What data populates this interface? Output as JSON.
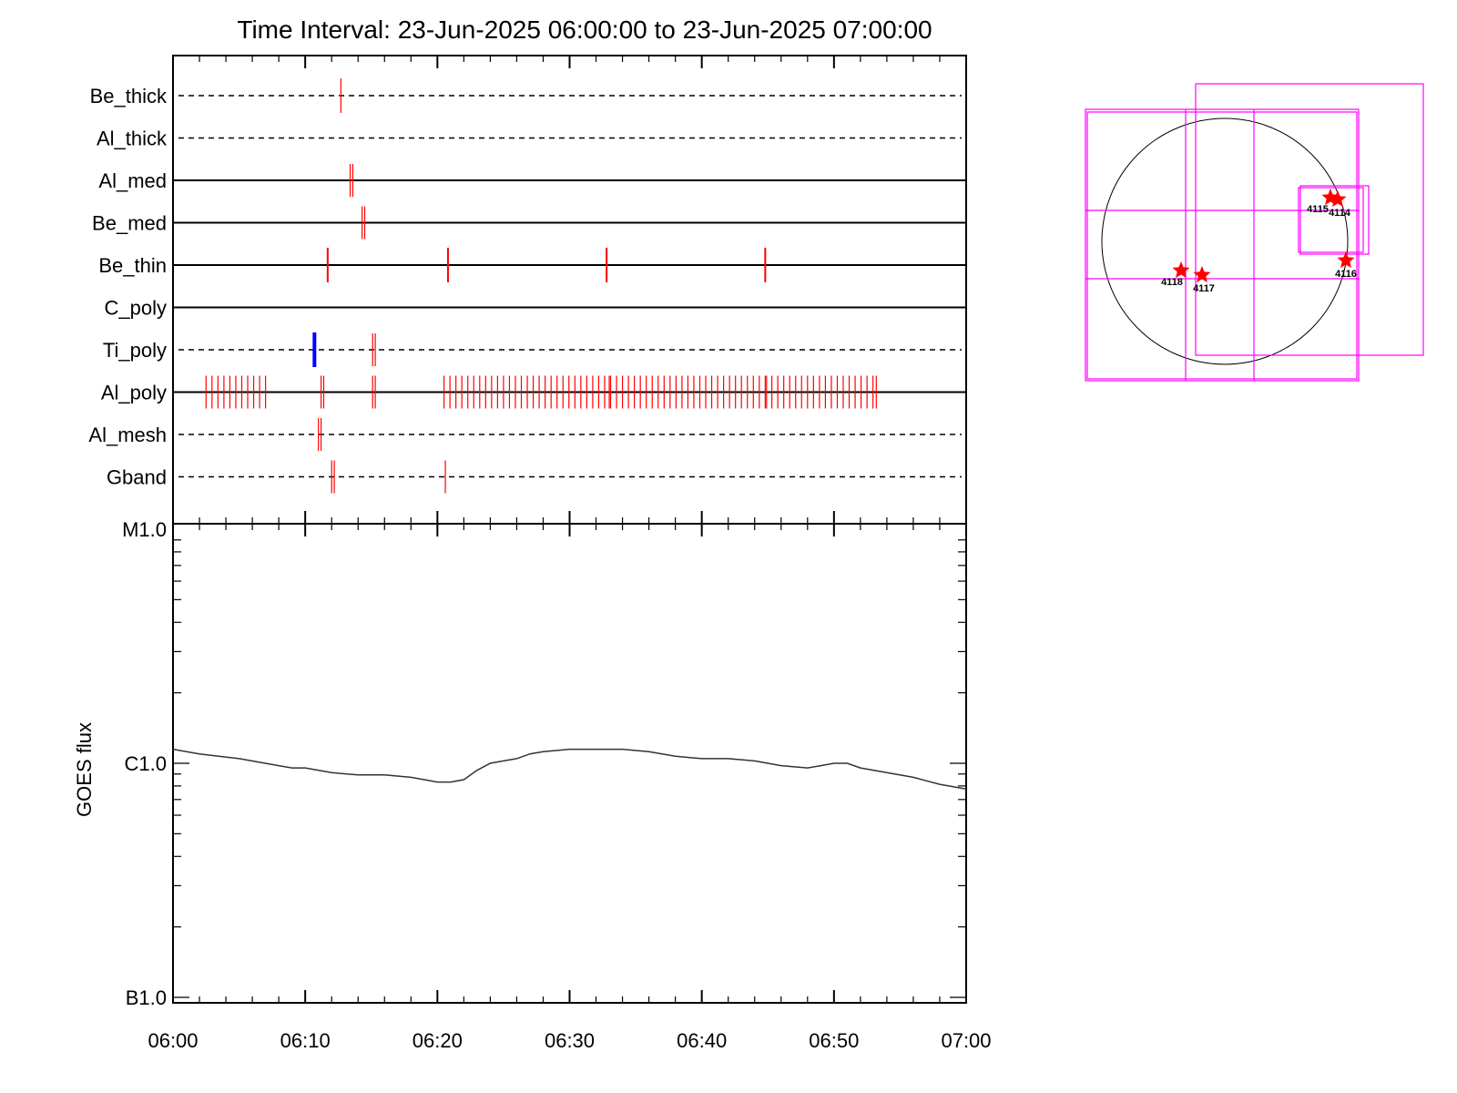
{
  "title": "Time Interval: 23-Jun-2025 06:00:00 to 23-Jun-2025 07:00:00",
  "colors": {
    "frame": "#000000",
    "exposure_tick": "#ff0000",
    "highlight_tick": "#0000ff",
    "fov_box": "#ff00ff",
    "flare_star": "#ff0000",
    "goes_line": "#333333"
  },
  "chart_data": [
    {
      "type": "event-timeline",
      "x_tick_labels": [
        "06:00",
        "06:10",
        "06:20",
        "06:30",
        "06:40",
        "06:50",
        "07:00"
      ],
      "x_range_minutes": [
        0,
        60
      ],
      "rows": [
        {
          "label": "Be_thick",
          "line": "dashed",
          "events": [
            {
              "t": 12.7,
              "color": "red"
            }
          ]
        },
        {
          "label": "Al_thick",
          "line": "dashed",
          "events": []
        },
        {
          "label": "Al_med",
          "line": "solid",
          "events": [
            {
              "t": 13.4,
              "color": "red"
            },
            {
              "t": 13.6,
              "color": "red"
            }
          ]
        },
        {
          "label": "Be_med",
          "line": "solid",
          "events": [
            {
              "t": 14.3,
              "color": "red"
            },
            {
              "t": 14.5,
              "color": "red"
            }
          ]
        },
        {
          "label": "Be_thin",
          "line": "solid",
          "events": [
            {
              "t": 11.7,
              "color": "red"
            },
            {
              "t": 20.8,
              "color": "red"
            },
            {
              "t": 32.8,
              "color": "red"
            },
            {
              "t": 44.8,
              "color": "red"
            }
          ]
        },
        {
          "label": "C_poly",
          "line": "solid",
          "events": []
        },
        {
          "label": "Ti_poly",
          "line": "dashed",
          "events": [
            {
              "t": 10.7,
              "color": "blue"
            },
            {
              "t": 15.1,
              "color": "red"
            },
            {
              "t": 15.3,
              "color": "red"
            }
          ]
        },
        {
          "label": "Al_poly",
          "line": "solid",
          "events": [
            {
              "t": 2.5,
              "color": "red"
            },
            {
              "t": 2.95,
              "color": "red"
            },
            {
              "t": 3.4,
              "color": "red"
            },
            {
              "t": 3.85,
              "color": "red"
            },
            {
              "t": 4.3,
              "color": "red"
            },
            {
              "t": 4.75,
              "color": "red"
            },
            {
              "t": 5.2,
              "color": "red"
            },
            {
              "t": 5.65,
              "color": "red"
            },
            {
              "t": 6.1,
              "color": "red"
            },
            {
              "t": 6.55,
              "color": "red"
            },
            {
              "t": 7.0,
              "color": "red"
            },
            {
              "t": 11.2,
              "color": "red"
            },
            {
              "t": 11.4,
              "color": "red"
            },
            {
              "t": 15.1,
              "color": "red"
            },
            {
              "t": 15.3,
              "color": "red"
            },
            {
              "t": 20.5,
              "color": "red"
            },
            {
              "t": 20.95,
              "color": "red"
            },
            {
              "t": 21.4,
              "color": "red"
            },
            {
              "t": 21.85,
              "color": "red"
            },
            {
              "t": 22.3,
              "color": "red"
            },
            {
              "t": 22.75,
              "color": "red"
            },
            {
              "t": 23.2,
              "color": "red"
            },
            {
              "t": 23.65,
              "color": "red"
            },
            {
              "t": 24.1,
              "color": "red"
            },
            {
              "t": 24.55,
              "color": "red"
            },
            {
              "t": 25.0,
              "color": "red"
            },
            {
              "t": 25.45,
              "color": "red"
            },
            {
              "t": 25.9,
              "color": "red"
            },
            {
              "t": 26.35,
              "color": "red"
            },
            {
              "t": 26.8,
              "color": "red"
            },
            {
              "t": 27.25,
              "color": "red"
            },
            {
              "t": 27.7,
              "color": "red"
            },
            {
              "t": 28.15,
              "color": "red"
            },
            {
              "t": 28.6,
              "color": "red"
            },
            {
              "t": 29.05,
              "color": "red"
            },
            {
              "t": 29.5,
              "color": "red"
            },
            {
              "t": 29.95,
              "color": "red"
            },
            {
              "t": 30.4,
              "color": "red"
            },
            {
              "t": 30.85,
              "color": "red"
            },
            {
              "t": 31.3,
              "color": "red"
            },
            {
              "t": 31.75,
              "color": "red"
            },
            {
              "t": 32.2,
              "color": "red"
            },
            {
              "t": 32.65,
              "color": "red"
            },
            {
              "t": 33.0,
              "color": "red"
            },
            {
              "t": 33.1,
              "color": "red"
            },
            {
              "t": 33.55,
              "color": "red"
            },
            {
              "t": 34.0,
              "color": "red"
            },
            {
              "t": 34.45,
              "color": "red"
            },
            {
              "t": 34.9,
              "color": "red"
            },
            {
              "t": 35.35,
              "color": "red"
            },
            {
              "t": 35.8,
              "color": "red"
            },
            {
              "t": 36.25,
              "color": "red"
            },
            {
              "t": 36.7,
              "color": "red"
            },
            {
              "t": 37.15,
              "color": "red"
            },
            {
              "t": 37.6,
              "color": "red"
            },
            {
              "t": 38.05,
              "color": "red"
            },
            {
              "t": 38.5,
              "color": "red"
            },
            {
              "t": 38.95,
              "color": "red"
            },
            {
              "t": 39.4,
              "color": "red"
            },
            {
              "t": 39.85,
              "color": "red"
            },
            {
              "t": 40.3,
              "color": "red"
            },
            {
              "t": 40.75,
              "color": "red"
            },
            {
              "t": 41.2,
              "color": "red"
            },
            {
              "t": 41.65,
              "color": "red"
            },
            {
              "t": 42.1,
              "color": "red"
            },
            {
              "t": 42.55,
              "color": "red"
            },
            {
              "t": 43.0,
              "color": "red"
            },
            {
              "t": 43.45,
              "color": "red"
            },
            {
              "t": 43.9,
              "color": "red"
            },
            {
              "t": 44.35,
              "color": "red"
            },
            {
              "t": 44.8,
              "color": "red"
            },
            {
              "t": 44.9,
              "color": "red"
            },
            {
              "t": 45.3,
              "color": "red"
            },
            {
              "t": 45.75,
              "color": "red"
            },
            {
              "t": 46.2,
              "color": "red"
            },
            {
              "t": 46.65,
              "color": "red"
            },
            {
              "t": 47.1,
              "color": "red"
            },
            {
              "t": 47.55,
              "color": "red"
            },
            {
              "t": 48.0,
              "color": "red"
            },
            {
              "t": 48.45,
              "color": "red"
            },
            {
              "t": 48.9,
              "color": "red"
            },
            {
              "t": 49.35,
              "color": "red"
            },
            {
              "t": 49.8,
              "color": "red"
            },
            {
              "t": 50.25,
              "color": "red"
            },
            {
              "t": 50.7,
              "color": "red"
            },
            {
              "t": 51.15,
              "color": "red"
            },
            {
              "t": 51.6,
              "color": "red"
            },
            {
              "t": 52.05,
              "color": "red"
            },
            {
              "t": 52.5,
              "color": "red"
            },
            {
              "t": 52.95,
              "color": "red"
            },
            {
              "t": 53.2,
              "color": "red"
            }
          ]
        },
        {
          "label": "Al_mesh",
          "line": "dashed",
          "events": [
            {
              "t": 11.0,
              "color": "red"
            },
            {
              "t": 11.2,
              "color": "red"
            }
          ]
        },
        {
          "label": "Gband",
          "line": "dashed",
          "events": [
            {
              "t": 12.0,
              "color": "red"
            },
            {
              "t": 12.2,
              "color": "red"
            },
            {
              "t": 20.6,
              "color": "red"
            }
          ]
        }
      ]
    },
    {
      "type": "line",
      "ylabel": "GOES flux",
      "y_tick_labels": [
        "M1.0",
        "C1.0",
        "B1.0"
      ],
      "ylog": true,
      "ylim_log10": [
        -7,
        -5
      ],
      "x_range_minutes": [
        0,
        60
      ],
      "series": [
        {
          "x_minutes": [
            0,
            2,
            5,
            8,
            9,
            10,
            12,
            14,
            16,
            18,
            20,
            21,
            22,
            23,
            24,
            25,
            26,
            27,
            28,
            30,
            32,
            34,
            36,
            38,
            40,
            42,
            44,
            46,
            48,
            49,
            50,
            51,
            52,
            54,
            56,
            58,
            60
          ],
          "log10_flux": [
            -5.94,
            -5.96,
            -5.98,
            -6.01,
            -6.02,
            -6.02,
            -6.04,
            -6.05,
            -6.05,
            -6.06,
            -6.08,
            -6.08,
            -6.07,
            -6.03,
            -6.0,
            -5.99,
            -5.98,
            -5.96,
            -5.95,
            -5.94,
            -5.94,
            -5.94,
            -5.95,
            -5.97,
            -5.98,
            -5.98,
            -5.99,
            -6.01,
            -6.02,
            -6.01,
            -6.0,
            -6.0,
            -6.02,
            -6.04,
            -6.06,
            -6.09,
            -6.11
          ]
        }
      ]
    },
    {
      "type": "solar-disk-map",
      "flares": [
        {
          "label": "4115"
        },
        {
          "label": "4114"
        },
        {
          "label": "4118"
        },
        {
          "label": "4117"
        },
        {
          "label": "4116"
        }
      ]
    }
  ]
}
